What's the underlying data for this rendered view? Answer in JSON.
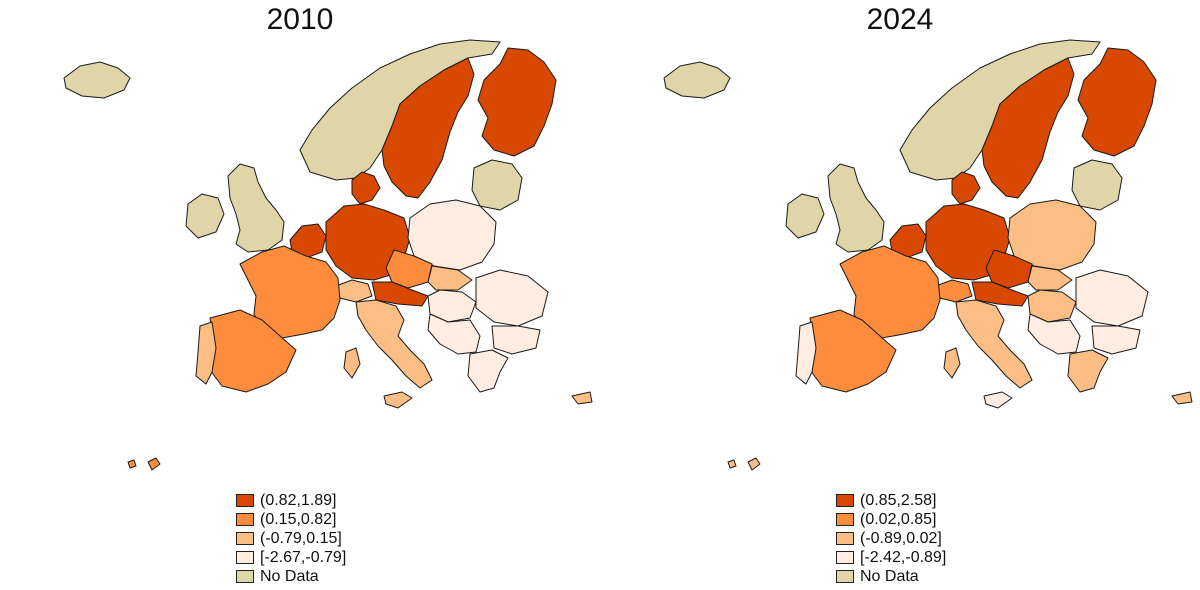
{
  "panels": [
    {
      "title": "2010",
      "legend": [
        {
          "label": "(0.82,1.89]",
          "color": "#d94801"
        },
        {
          "label": "(0.15,0.82]",
          "color": "#fd8d3c"
        },
        {
          "label": "(-0.79,0.15]",
          "color": "#fdbe85"
        },
        {
          "label": "[-2.67,-0.79]",
          "color": "#feede0"
        },
        {
          "label": "No Data",
          "color": "#e0d5a8"
        }
      ]
    },
    {
      "title": "2024",
      "legend": [
        {
          "label": "(0.85,2.58]",
          "color": "#d94801"
        },
        {
          "label": "(0.02,0.85]",
          "color": "#fd8d3c"
        },
        {
          "label": "(-0.89,0.02]",
          "color": "#fdbe85"
        },
        {
          "label": "[-2.42,-0.89]",
          "color": "#feede0"
        },
        {
          "label": "No Data",
          "color": "#e0d5a8"
        }
      ]
    }
  ]
}
